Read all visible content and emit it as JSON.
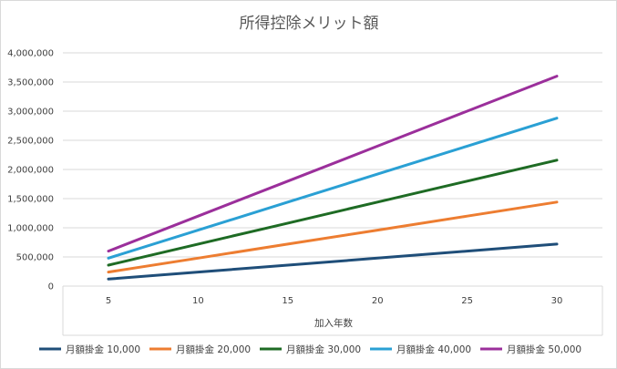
{
  "chart_data": {
    "type": "line",
    "title": "所得控除メリット額",
    "xlabel": "加入年数",
    "ylabel": "",
    "x": [
      5,
      10,
      15,
      20,
      25,
      30
    ],
    "x_ticks": [
      "5",
      "10",
      "15",
      "20",
      "25",
      "30"
    ],
    "ylim": [
      0,
      4000000
    ],
    "y_ticks": [
      "0",
      "500,000",
      "1,000,000",
      "1,500,000",
      "2,000,000",
      "2,500,000",
      "3,000,000",
      "3,500,000",
      "4,000,000"
    ],
    "grid": true,
    "legend_position": "bottom",
    "series": [
      {
        "name": "月額掛金 10,000",
        "color": "#1f4e79",
        "values": [
          120000,
          240000,
          360000,
          480000,
          600000,
          720000
        ]
      },
      {
        "name": "月額掛金 20,000",
        "color": "#ed7d31",
        "values": [
          240000,
          480000,
          720000,
          960000,
          1200000,
          1440000
        ]
      },
      {
        "name": "月額掛金 30,000",
        "color": "#1e6b24",
        "values": [
          360000,
          720000,
          1080000,
          1440000,
          1800000,
          2160000
        ]
      },
      {
        "name": "月額掛金 40,000",
        "color": "#2aa0d4",
        "values": [
          480000,
          960000,
          1440000,
          1920000,
          2400000,
          2880000
        ]
      },
      {
        "name": "月額掛金 50,000",
        "color": "#9b2f9b",
        "values": [
          600000,
          1200000,
          1800000,
          2400000,
          3000000,
          3600000
        ]
      }
    ]
  }
}
